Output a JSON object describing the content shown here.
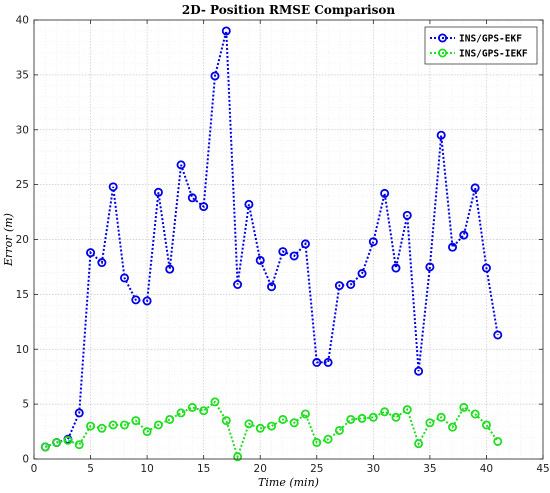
{
  "chart_data": {
    "type": "line",
    "title": "2D- Position RMSE Comparison",
    "xlabel": "Time (min)",
    "ylabel": "Error (m)",
    "xlim": [
      0,
      45
    ],
    "ylim": [
      0,
      40
    ],
    "x_ticks": [
      0,
      5,
      10,
      15,
      20,
      25,
      30,
      35,
      40,
      45
    ],
    "y_ticks": [
      0,
      5,
      10,
      15,
      20,
      25,
      30,
      35,
      40
    ],
    "grid": true,
    "legend_position": "top-right",
    "x": [
      1,
      2,
      3,
      4,
      5,
      6,
      7,
      8,
      9,
      10,
      11,
      12,
      13,
      14,
      15,
      16,
      17,
      18,
      19,
      20,
      21,
      22,
      23,
      24,
      25,
      26,
      27,
      28,
      29,
      30,
      31,
      32,
      33,
      34,
      35,
      36,
      37,
      38,
      39,
      40,
      41
    ],
    "series": [
      {
        "name": "INS/GPS-EKF",
        "color": "#0000e6",
        "values": [
          1.1,
          1.5,
          1.8,
          4.2,
          18.8,
          17.9,
          24.8,
          16.5,
          14.5,
          14.4,
          24.3,
          17.3,
          26.8,
          23.8,
          23.0,
          34.9,
          39.0,
          15.9,
          23.2,
          18.1,
          15.7,
          18.9,
          18.5,
          19.6,
          8.8,
          8.8,
          15.8,
          15.9,
          16.9,
          19.8,
          24.2,
          17.4,
          22.2,
          8.0,
          17.5,
          29.5,
          19.3,
          20.4,
          24.7,
          17.4,
          11.3
        ]
      },
      {
        "name": "INS/GPS-IEKF",
        "color": "#22dd22",
        "values": [
          1.1,
          1.5,
          1.7,
          1.3,
          3.0,
          2.8,
          3.1,
          3.1,
          3.5,
          2.5,
          3.1,
          3.6,
          4.2,
          4.7,
          4.4,
          5.2,
          3.5,
          0.2,
          3.2,
          2.8,
          3.0,
          3.6,
          3.3,
          4.1,
          1.5,
          1.8,
          2.6,
          3.6,
          3.7,
          3.8,
          4.3,
          3.8,
          4.5,
          1.4,
          3.3,
          3.8,
          2.9,
          4.7,
          4.1,
          3.1,
          1.6
        ]
      }
    ]
  }
}
